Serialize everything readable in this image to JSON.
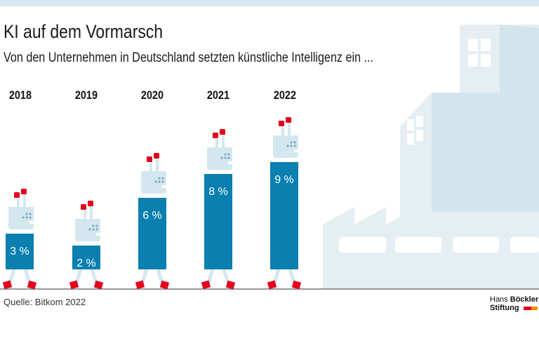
{
  "title": "KI auf dem Vormarsch",
  "subtitle": "Von den Unternehmen in Deutschland setzten künstliche Intelligenz ein ...",
  "source": "Quelle: Bitkom 2022",
  "logo": {
    "line1_a": "Hans",
    "line1_b": "Böckler",
    "line2": "Stiftung"
  },
  "colors": {
    "bar": "#0a7fb0",
    "robot": "#d4e7ef",
    "accent": "#e3001b",
    "background_building": "#e3eef3"
  },
  "chart_data": {
    "type": "bar",
    "categories": [
      "2018",
      "2019",
      "2020",
      "2021",
      "2022"
    ],
    "values": [
      3,
      2,
      6,
      8,
      9
    ],
    "labels": [
      "3 %",
      "2 %",
      "6 %",
      "8 %",
      "9 %"
    ],
    "unit": "%",
    "ylim": [
      0,
      9
    ],
    "grid": false
  }
}
